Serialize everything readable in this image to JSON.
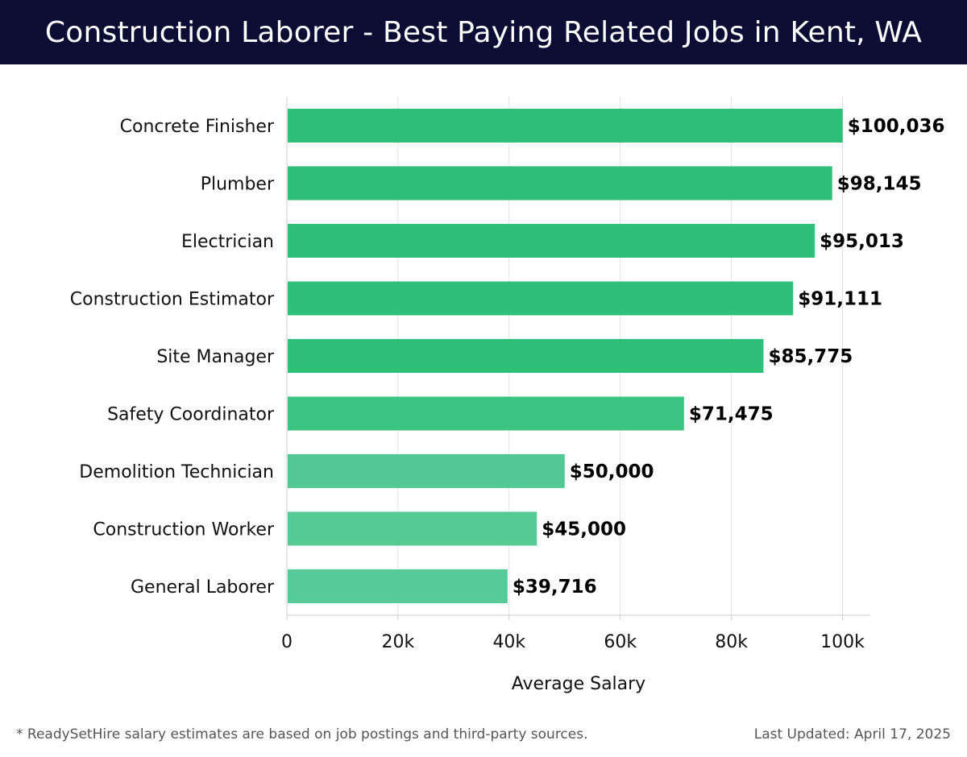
{
  "header": {
    "title": "Construction Laborer - Best Paying Related Jobs in Kent, WA"
  },
  "chart_data": {
    "type": "bar",
    "orientation": "horizontal",
    "title": "Construction Laborer - Best Paying Related Jobs in Kent, WA",
    "xlabel": "Average Salary",
    "ylabel": "",
    "xlim": [
      0,
      105000
    ],
    "xticks": [
      0,
      20000,
      40000,
      60000,
      80000,
      100000
    ],
    "xtick_labels": [
      "0",
      "20k",
      "40k",
      "60k",
      "80k",
      "100k"
    ],
    "grid": true,
    "categories": [
      "Concrete Finisher",
      "Plumber",
      "Electrician",
      "Construction Estimator",
      "Site Manager",
      "Safety Coordinator",
      "Demolition Technician",
      "Construction Worker",
      "General Laborer"
    ],
    "values": [
      100036,
      98145,
      95013,
      91111,
      85775,
      71475,
      50000,
      45000,
      39716
    ],
    "value_labels": [
      "$100,036",
      "$98,145",
      "$95,013",
      "$91,111",
      "$85,775",
      "$71,475",
      "$50,000",
      "$45,000",
      "$39,716"
    ],
    "bar_colors": [
      "#2ebf78",
      "#2ebf78",
      "#2ebf78",
      "#2ebf78",
      "#2ebf78",
      "#3cc485",
      "#52c994",
      "#55ca95",
      "#57cb97"
    ]
  },
  "colors": {
    "header_bg": "#0c0d35",
    "header_text": "#ffffff",
    "bar": "#2ebf78",
    "grid": "#e3e3e3",
    "axis": "#cccccc"
  },
  "footer": {
    "note": "* ReadySetHire salary estimates are based on job postings and third-party sources.",
    "updated": "Last Updated: April 17, 2025"
  }
}
